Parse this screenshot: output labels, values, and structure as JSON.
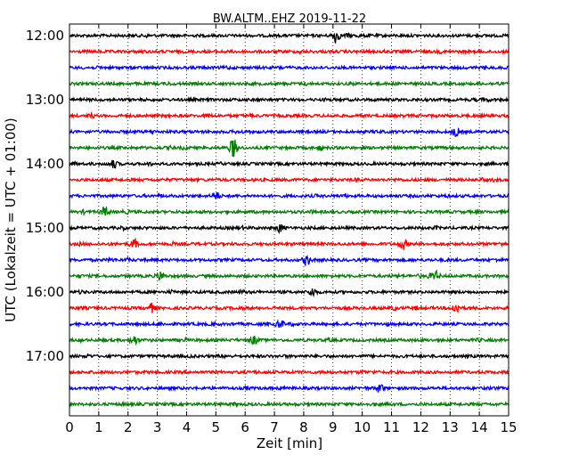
{
  "chart_data": {
    "type": "line",
    "title": "BW.ALTM..EHZ 2019-11-22",
    "xlabel": "Zeit  [min]",
    "ylabel": "UTC (Lokalzeit = UTC + 01:00)",
    "xlim": [
      0,
      15
    ],
    "x_ticks": [
      0,
      1,
      2,
      3,
      4,
      5,
      6,
      7,
      8,
      9,
      10,
      11,
      12,
      13,
      14,
      15
    ],
    "x_tick_labels": [
      "0",
      "1",
      "2",
      "3",
      "4",
      "5",
      "6",
      "7",
      "8",
      "9",
      "10",
      "11",
      "12",
      "13",
      "14",
      "15"
    ],
    "y_tick_labels": [
      "12:00",
      "13:00",
      "14:00",
      "15:00",
      "16:00",
      "17:00"
    ],
    "y_tick_rows": [
      0,
      4,
      8,
      12,
      16,
      20
    ],
    "trace_interval_min": 15,
    "trace_count": 24,
    "trace_colors": [
      "#000000",
      "#ff0000",
      "#0000ff",
      "#008000"
    ],
    "vertical_grid": "dotted",
    "events": [
      {
        "row": 0,
        "x": 9.1,
        "amp": 2.2
      },
      {
        "row": 6,
        "x": 13.2,
        "amp": 1.3
      },
      {
        "row": 7,
        "x": 5.6,
        "amp": 3.0
      },
      {
        "row": 8,
        "x": 1.5,
        "amp": 1.2
      },
      {
        "row": 10,
        "x": 5.0,
        "amp": 1.2
      },
      {
        "row": 11,
        "x": 1.2,
        "amp": 1.4
      },
      {
        "row": 12,
        "x": 7.2,
        "amp": 1.2
      },
      {
        "row": 13,
        "x": 2.2,
        "amp": 1.3
      },
      {
        "row": 13,
        "x": 11.4,
        "amp": 1.5
      },
      {
        "row": 14,
        "x": 8.1,
        "amp": 1.4
      },
      {
        "row": 15,
        "x": 3.1,
        "amp": 1.3
      },
      {
        "row": 15,
        "x": 12.5,
        "amp": 1.4
      },
      {
        "row": 16,
        "x": 8.3,
        "amp": 1.2
      },
      {
        "row": 17,
        "x": 2.8,
        "amp": 1.3
      },
      {
        "row": 17,
        "x": 13.2,
        "amp": 1.5
      },
      {
        "row": 18,
        "x": 7.2,
        "amp": 1.2
      },
      {
        "row": 19,
        "x": 2.2,
        "amp": 1.4
      },
      {
        "row": 19,
        "x": 6.3,
        "amp": 1.2
      },
      {
        "row": 22,
        "x": 10.6,
        "amp": 1.2
      }
    ]
  }
}
